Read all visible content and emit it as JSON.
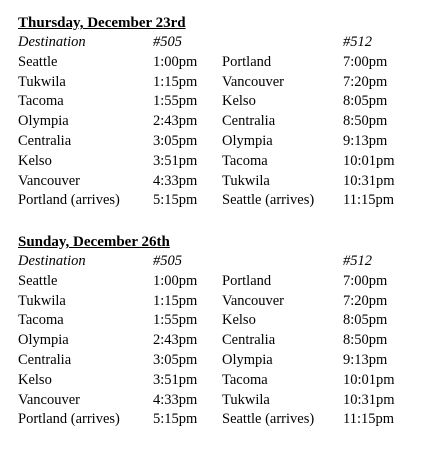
{
  "sections": [
    {
      "title": "Thursday, December 23rd",
      "headers": {
        "destination": "Destination",
        "train_a": "#505",
        "train_b": "#512"
      },
      "rows": [
        {
          "dest_a": "Seattle",
          "time_a": "1:00pm",
          "dest_b": "Portland",
          "time_b": "7:00pm"
        },
        {
          "dest_a": "Tukwila",
          "time_a": "1:15pm",
          "dest_b": "Vancouver",
          "time_b": "7:20pm"
        },
        {
          "dest_a": "Tacoma",
          "time_a": "1:55pm",
          "dest_b": "Kelso",
          "time_b": "8:05pm"
        },
        {
          "dest_a": "Olympia",
          "time_a": "2:43pm",
          "dest_b": "Centralia",
          "time_b": "8:50pm"
        },
        {
          "dest_a": "Centralia",
          "time_a": "3:05pm",
          "dest_b": "Olympia",
          "time_b": "9:13pm"
        },
        {
          "dest_a": "Kelso",
          "time_a": "3:51pm",
          "dest_b": "Tacoma",
          "time_b": "10:01pm"
        },
        {
          "dest_a": "Vancouver",
          "time_a": "4:33pm",
          "dest_b": "Tukwila",
          "time_b": "10:31pm"
        },
        {
          "dest_a": "Portland (arrives)",
          "time_a": "5:15pm",
          "dest_b": "Seattle (arrives)",
          "time_b": "11:15pm"
        }
      ]
    },
    {
      "title": "Sunday, December 26th",
      "headers": {
        "destination": "Destination",
        "train_a": "#505",
        "train_b": "#512"
      },
      "rows": [
        {
          "dest_a": "Seattle",
          "time_a": "1:00pm",
          "dest_b": "Portland",
          "time_b": "7:00pm"
        },
        {
          "dest_a": "Tukwila",
          "time_a": "1:15pm",
          "dest_b": "Vancouver",
          "time_b": "7:20pm"
        },
        {
          "dest_a": "Tacoma",
          "time_a": "1:55pm",
          "dest_b": "Kelso",
          "time_b": "8:05pm"
        },
        {
          "dest_a": "Olympia",
          "time_a": "2:43pm",
          "dest_b": "Centralia",
          "time_b": "8:50pm"
        },
        {
          "dest_a": "Centralia",
          "time_a": "3:05pm",
          "dest_b": "Olympia",
          "time_b": "9:13pm"
        },
        {
          "dest_a": "Kelso",
          "time_a": "3:51pm",
          "dest_b": "Tacoma",
          "time_b": "10:01pm"
        },
        {
          "dest_a": "Vancouver",
          "time_a": "4:33pm",
          "dest_b": "Tukwila",
          "time_b": "10:31pm"
        },
        {
          "dest_a": "Portland (arrives)",
          "time_a": "5:15pm",
          "dest_b": "Seattle (arrives)",
          "time_b": "11:15pm"
        }
      ]
    }
  ]
}
